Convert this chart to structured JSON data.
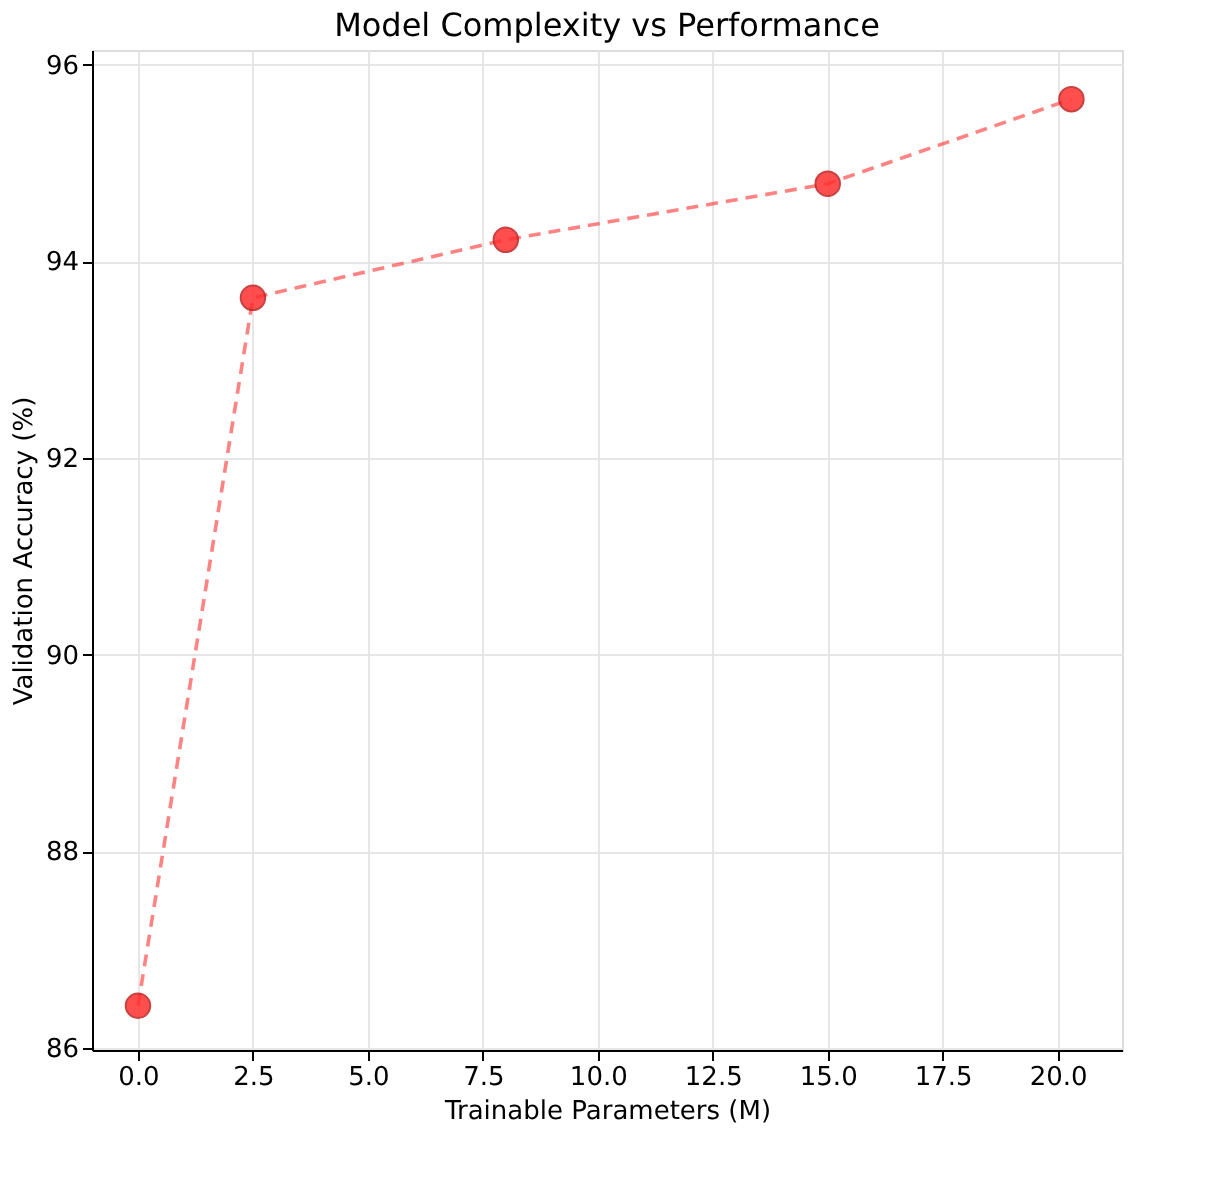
{
  "chart_data": {
    "type": "line",
    "title": "Model Complexity vs Performance",
    "xlabel": "Trainable Parameters (M)",
    "ylabel": "Validation Accuracy (%)",
    "x": [
      0.0,
      2.5,
      8.0,
      15.0,
      20.3
    ],
    "series": [
      {
        "color": "#ff3030",
        "values": [
          86.43,
          93.63,
          94.22,
          94.79,
          95.65
        ]
      }
    ],
    "xlim": [
      -1.0,
      21.4
    ],
    "xticks": [
      {
        "value": 0,
        "label": "0.0"
      },
      {
        "value": 2.5,
        "label": "2.5"
      },
      {
        "value": 5,
        "label": "5.0"
      },
      {
        "value": 7.5,
        "label": "7.5"
      },
      {
        "value": 10,
        "label": "10.0"
      },
      {
        "value": 12.5,
        "label": "12.5"
      },
      {
        "value": 15,
        "label": "15.0"
      },
      {
        "value": 17.5,
        "label": "17.5"
      },
      {
        "value": 20,
        "label": "20.0"
      }
    ],
    "ylim": [
      85.98,
      96.15
    ],
    "yticks": [
      86,
      88,
      90,
      92,
      94,
      96
    ],
    "grid": true,
    "marker": "circle",
    "line_style": "dashed"
  }
}
